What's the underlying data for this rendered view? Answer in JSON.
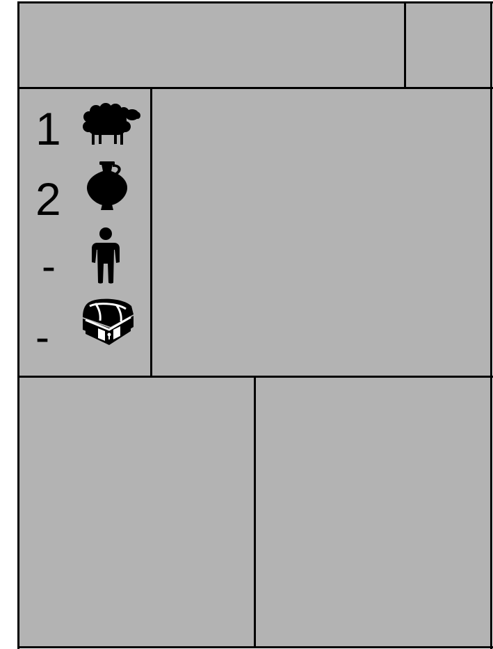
{
  "colors": {
    "panel": "#b3b3b3",
    "border": "#000000",
    "icon": "#000000"
  },
  "resources": [
    {
      "icon": "sheep-icon",
      "count": "1"
    },
    {
      "icon": "amphora-icon",
      "count": "2"
    },
    {
      "icon": "person-icon",
      "count": "-"
    },
    {
      "icon": "treasure-chest-icon",
      "count": "-"
    }
  ]
}
